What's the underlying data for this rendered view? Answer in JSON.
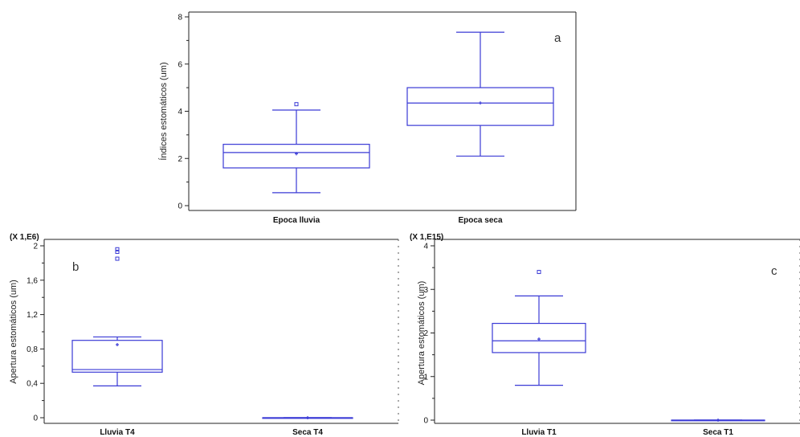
{
  "chart_data": [
    {
      "type": "box",
      "panel_letter": "a",
      "ylabel": "Índices estomáticos (um)",
      "y_multiplier": "",
      "ylim": [
        0,
        8
      ],
      "yticks": [
        0,
        2,
        4,
        6,
        8
      ],
      "ytick_labels": [
        "0",
        "2",
        "4",
        "6",
        "8"
      ],
      "categories": [
        "Epoca lluvia",
        "Epoca seca"
      ],
      "boxes": [
        {
          "whisker_low": 0.55,
          "q1": 1.6,
          "median": 2.25,
          "q3": 2.6,
          "whisker_high": 4.05,
          "mean": 2.2,
          "outliers": [
            4.3
          ]
        },
        {
          "whisker_low": 2.1,
          "q1": 3.4,
          "median": 4.35,
          "q3": 5.0,
          "whisker_high": 7.35,
          "mean": 4.35,
          "outliers": []
        }
      ]
    },
    {
      "type": "box",
      "panel_letter": "b",
      "ylabel": "Apertura estomáticos (um)",
      "y_multiplier": "(X 1,E6)",
      "ylim": [
        0,
        2
      ],
      "yticks": [
        0,
        0.4,
        0.8,
        1.2,
        1.6,
        2
      ],
      "ytick_labels": [
        "0",
        "0,4",
        "0,8",
        "1,2",
        "1,6",
        "2"
      ],
      "categories": [
        "Lluvia T4",
        "Seca T4"
      ],
      "boxes": [
        {
          "whisker_low": 0.37,
          "q1": 0.53,
          "median": 0.56,
          "q3": 0.9,
          "whisker_high": 0.94,
          "mean": 0.85,
          "outliers": [
            1.85,
            1.93,
            1.96
          ]
        },
        {
          "whisker_low": 0,
          "q1": 0,
          "median": 0,
          "q3": 0,
          "whisker_high": 0,
          "mean": 0,
          "outliers": []
        }
      ]
    },
    {
      "type": "box",
      "panel_letter": "c",
      "ylabel": "Apertura estomáticos (um)",
      "y_multiplier": "(X 1,E15)",
      "ylim": [
        0,
        4
      ],
      "yticks": [
        0,
        1,
        2,
        3,
        4
      ],
      "ytick_labels": [
        "0",
        "1",
        "2",
        "3",
        "4"
      ],
      "categories": [
        "Lluvia T1",
        "Seca T1"
      ],
      "boxes": [
        {
          "whisker_low": 0.8,
          "q1": 1.55,
          "median": 1.82,
          "q3": 2.22,
          "whisker_high": 2.85,
          "mean": 1.86,
          "outliers": [
            3.4
          ]
        },
        {
          "whisker_low": 0,
          "q1": 0,
          "median": 0,
          "q3": 0,
          "whisker_high": 0,
          "mean": 0,
          "outliers": []
        }
      ]
    }
  ]
}
